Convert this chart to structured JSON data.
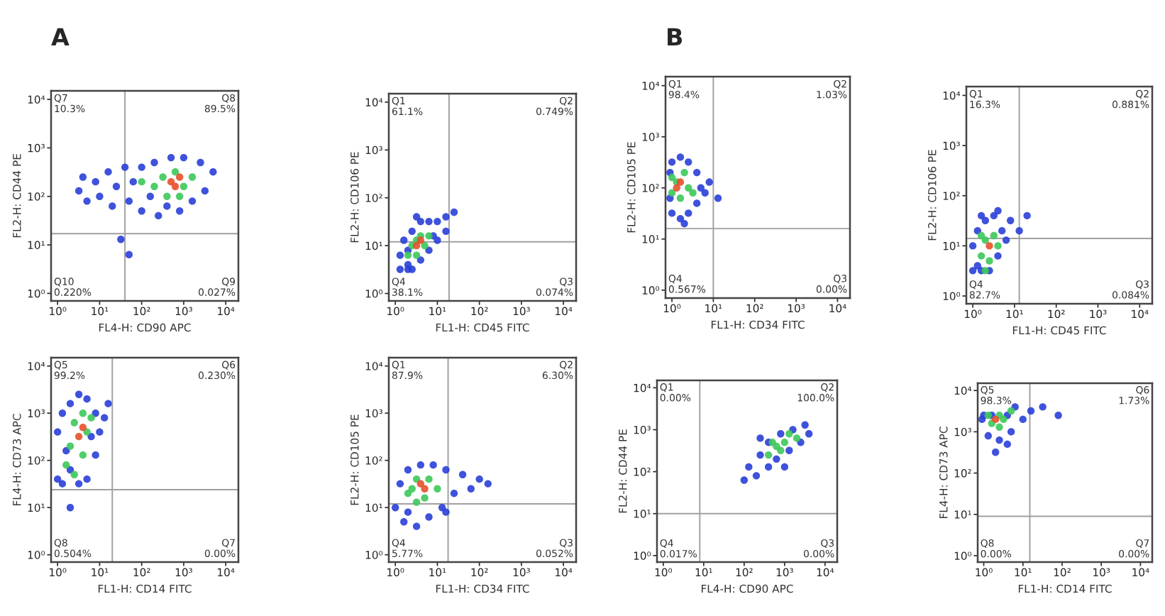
{
  "chart_data": [
    {
      "type": "scatter",
      "title": "A",
      "xlabel": "FL4-H: CD90 APC",
      "ylabel": "FL2-H: CD44 PE",
      "log": "xy",
      "marker": "circle",
      "xlim": [
        0.7,
        20000
      ],
      "ylim": [
        0.7,
        15000
      ],
      "xticks": [
        {
          "value": 1,
          "label": "10⁰"
        },
        {
          "value": 10,
          "label": "10¹"
        },
        {
          "value": 100,
          "label": "10²"
        },
        {
          "value": 1000,
          "label": "10³"
        },
        {
          "value": 10000,
          "label": "10⁴"
        }
      ],
      "yticks": [
        {
          "value": 1,
          "label": "10⁰"
        },
        {
          "value": 10,
          "label": "10¹"
        },
        {
          "value": 100,
          "label": "10²"
        },
        {
          "value": 1000,
          "label": "10³"
        },
        {
          "value": 10000,
          "label": "10⁴"
        }
      ],
      "ref_lines": [
        {
          "axis": "x",
          "value": 40,
          "color": "#a0a0a0"
        },
        {
          "axis": "y",
          "value": 17,
          "color": "#a0a0a0"
        }
      ],
      "series": [
        {
          "color": "#2a3fd8",
          "x": [
            3.2,
            4,
            5,
            8,
            10,
            16,
            20,
            25,
            40,
            50,
            63,
            100,
            100,
            160,
            200,
            250,
            400,
            500,
            800,
            1000,
            1600,
            2500,
            3200,
            5000,
            50,
            32
          ],
          "values": [
            130,
            250,
            80,
            200,
            100,
            320,
            63,
            160,
            400,
            80,
            200,
            50,
            400,
            100,
            500,
            40,
            63,
            630,
            50,
            630,
            80,
            500,
            130,
            320,
            6.3,
            13
          ]
        },
        {
          "color": "#3cc85a",
          "x": [
            200,
            320,
            400,
            630,
            1000,
            1600,
            800,
            100
          ],
          "values": [
            160,
            250,
            100,
            320,
            160,
            250,
            100,
            200
          ]
        },
        {
          "color": "#e8502a",
          "x": [
            500,
            800,
            630
          ],
          "values": [
            200,
            250,
            160
          ]
        }
      ],
      "annotations": [
        "Q7\n10.3%",
        "Q8\n89.5%",
        "Q10\n0.220%",
        "Q9\n0.027%"
      ]
    },
    {
      "type": "scatter",
      "xlabel": "FL1-H: CD45 FITC",
      "ylabel": "FL2-H: CD106 PE",
      "log": "xy",
      "marker": "circle",
      "xlim": [
        0.7,
        20000
      ],
      "ylim": [
        0.7,
        15000
      ],
      "xticks": [
        {
          "value": 1,
          "label": "10⁰"
        },
        {
          "value": 10,
          "label": "10¹"
        },
        {
          "value": 100,
          "label": "10²"
        },
        {
          "value": 1000,
          "label": "10³"
        },
        {
          "value": 10000,
          "label": "10⁴"
        }
      ],
      "yticks": [
        {
          "value": 1,
          "label": "10⁰"
        },
        {
          "value": 10,
          "label": "10¹"
        },
        {
          "value": 100,
          "label": "10²"
        },
        {
          "value": 1000,
          "label": "10³"
        },
        {
          "value": 10000,
          "label": "10⁴"
        }
      ],
      "ref_lines": [
        {
          "axis": "x",
          "value": 19,
          "color": "#a0a0a0"
        },
        {
          "axis": "y",
          "value": 12,
          "color": "#a0a0a0"
        }
      ],
      "series": [
        {
          "color": "#2a3fd8",
          "x": [
            1.3,
            2,
            1.3,
            2,
            1.6,
            2.5,
            2.5,
            4,
            4,
            6.3,
            6.3,
            10,
            10,
            16,
            16,
            3.2,
            8,
            2,
            25
          ],
          "values": [
            3.2,
            3.2,
            6.3,
            4,
            13,
            3.2,
            20,
            5,
            32,
            8,
            32,
            13,
            32,
            20,
            40,
            40,
            16,
            8,
            50
          ]
        },
        {
          "color": "#3cc85a",
          "x": [
            2,
            2.5,
            3.2,
            4,
            5,
            6.3,
            3.2
          ],
          "values": [
            6.3,
            10,
            6.3,
            16,
            10,
            16,
            13
          ]
        },
        {
          "color": "#e8502a",
          "x": [
            4,
            3.2
          ],
          "values": [
            13,
            10
          ]
        }
      ],
      "annotations": [
        "Q1\n61.1%",
        "Q2\n0.749%",
        "Q4\n38.1%",
        "Q3\n0.074%"
      ]
    },
    {
      "type": "scatter",
      "title": "B",
      "xlabel": "FL1-H: CD34 FITC",
      "ylabel": "FL2-H: CD105 PE",
      "log": "xy",
      "marker": "circle",
      "xlim": [
        0.7,
        20000
      ],
      "ylim": [
        0.7,
        15000
      ],
      "xticks": [
        {
          "value": 1,
          "label": "10⁰"
        },
        {
          "value": 10,
          "label": "10¹"
        },
        {
          "value": 100,
          "label": "10²"
        },
        {
          "value": 1000,
          "label": "10³"
        },
        {
          "value": 10000,
          "label": "10⁴"
        }
      ],
      "yticks": [
        {
          "value": 1,
          "label": "10⁰"
        },
        {
          "value": 10,
          "label": "10¹"
        },
        {
          "value": 100,
          "label": "10²"
        },
        {
          "value": 1000,
          "label": "10³"
        },
        {
          "value": 10000,
          "label": "10⁴"
        }
      ],
      "ref_lines": [
        {
          "axis": "x",
          "value": 10,
          "color": "#a0a0a0"
        },
        {
          "axis": "y",
          "value": 16,
          "color": "#a0a0a0"
        }
      ],
      "series": [
        {
          "color": "#2a3fd8",
          "x": [
            0.9,
            0.9,
            1,
            1,
            1.6,
            1.6,
            2.5,
            2.5,
            4,
            4,
            6.3,
            8,
            13,
            5,
            2
          ],
          "values": [
            63,
            200,
            32,
            320,
            25,
            400,
            32,
            320,
            50,
            200,
            80,
            130,
            63,
            100,
            20
          ]
        },
        {
          "color": "#3cc85a",
          "x": [
            1,
            1,
            1.6,
            2,
            2.5,
            1.3,
            3.2
          ],
          "values": [
            80,
            160,
            63,
            200,
            100,
            130,
            80
          ]
        },
        {
          "color": "#e8502a",
          "x": [
            1.6,
            1.3
          ],
          "values": [
            130,
            100
          ]
        }
      ],
      "annotations": [
        "Q1\n98.4%",
        "Q2\n1.03%",
        "Q4\n0.567%",
        "Q3\n0.00%"
      ]
    },
    {
      "type": "scatter",
      "xlabel": "FL1-H: CD45 FITC",
      "ylabel": "FL2-H: CD106 PE",
      "log": "xy",
      "marker": "circle",
      "xlim": [
        0.7,
        20000
      ],
      "ylim": [
        0.7,
        15000
      ],
      "xticks": [
        {
          "value": 1,
          "label": "10⁰"
        },
        {
          "value": 10,
          "label": "10¹"
        },
        {
          "value": 100,
          "label": "10²"
        },
        {
          "value": 1000,
          "label": "10³"
        },
        {
          "value": 10000,
          "label": "10⁴"
        }
      ],
      "yticks": [
        {
          "value": 1,
          "label": "10⁰"
        },
        {
          "value": 10,
          "label": "10¹"
        },
        {
          "value": 100,
          "label": "10²"
        },
        {
          "value": 1000,
          "label": "10³"
        },
        {
          "value": 10000,
          "label": "10⁴"
        }
      ],
      "ref_lines": [
        {
          "axis": "x",
          "value": 13,
          "color": "#a0a0a0"
        },
        {
          "axis": "y",
          "value": 14,
          "color": "#a0a0a0"
        }
      ],
      "series": [
        {
          "color": "#2a3fd8",
          "x": [
            1,
            1.3,
            1,
            1.6,
            1.3,
            2,
            2.5,
            3.2,
            4,
            5,
            6.3,
            8,
            13,
            20,
            1.6,
            4
          ],
          "values": [
            3.2,
            4,
            10,
            3.2,
            20,
            32,
            3.2,
            40,
            6.3,
            20,
            13,
            32,
            20,
            40,
            40,
            50
          ]
        },
        {
          "color": "#3cc85a",
          "x": [
            1.6,
            2,
            2.5,
            3.2,
            2,
            4,
            1.6
          ],
          "values": [
            6.3,
            13,
            5,
            16,
            3.2,
            10,
            16
          ]
        },
        {
          "color": "#e8502a",
          "x": [
            2.5
          ],
          "values": [
            10
          ]
        }
      ],
      "annotations": [
        "Q1\n16.3%",
        "Q2\n0.881%",
        "Q4\n82.7%",
        "Q3\n0.084%"
      ]
    },
    {
      "type": "scatter",
      "xlabel": "FL1-H: CD14 FITC",
      "ylabel": "FL4-H: CD73 APC",
      "log": "xy",
      "marker": "circle",
      "xlim": [
        0.7,
        20000
      ],
      "ylim": [
        0.7,
        15000
      ],
      "xticks": [
        {
          "value": 1,
          "label": "10⁰"
        },
        {
          "value": 10,
          "label": "10¹"
        },
        {
          "value": 100,
          "label": "10²"
        },
        {
          "value": 1000,
          "label": "10³"
        },
        {
          "value": 10000,
          "label": "10⁴"
        }
      ],
      "yticks": [
        {
          "value": 1,
          "label": "10⁰"
        },
        {
          "value": 10,
          "label": "10¹"
        },
        {
          "value": 100,
          "label": "10²"
        },
        {
          "value": 1000,
          "label": "10³"
        },
        {
          "value": 10000,
          "label": "10⁴"
        }
      ],
      "ref_lines": [
        {
          "axis": "x",
          "value": 20,
          "color": "#a0a0a0"
        },
        {
          "axis": "y",
          "value": 24,
          "color": "#a0a0a0"
        }
      ],
      "series": [
        {
          "color": "#2a3fd8",
          "x": [
            1,
            1.3,
            1.6,
            1,
            1.3,
            2,
            3.2,
            5,
            8,
            10,
            13,
            8,
            5,
            3.2,
            2,
            2,
            6.3,
            16
          ],
          "values": [
            40,
            32,
            160,
            400,
            1000,
            1600,
            2500,
            2000,
            1000,
            400,
            800,
            130,
            40,
            32,
            10,
            63,
            320,
            1600
          ]
        },
        {
          "color": "#3cc85a",
          "x": [
            1.6,
            2,
            2.5,
            4,
            5,
            4,
            2.5,
            6.3
          ],
          "values": [
            80,
            200,
            630,
            1000,
            400,
            130,
            50,
            800
          ]
        },
        {
          "color": "#e8502a",
          "x": [
            3.2,
            4
          ],
          "values": [
            320,
            500
          ]
        }
      ],
      "annotations": [
        "Q5\n99.2%",
        "Q6\n0.230%",
        "Q8\n0.504%",
        "Q7\n0.00%"
      ]
    },
    {
      "type": "scatter",
      "xlabel": "FL1-H: CD34 FITC",
      "ylabel": "FL2-H: CD105 PE",
      "log": "xy",
      "marker": "circle",
      "xlim": [
        0.7,
        20000
      ],
      "ylim": [
        0.7,
        15000
      ],
      "xticks": [
        {
          "value": 1,
          "label": "10⁰"
        },
        {
          "value": 10,
          "label": "10¹"
        },
        {
          "value": 100,
          "label": "10²"
        },
        {
          "value": 1000,
          "label": "10³"
        },
        {
          "value": 10000,
          "label": "10⁴"
        }
      ],
      "yticks": [
        {
          "value": 1,
          "label": "10⁰"
        },
        {
          "value": 10,
          "label": "10¹"
        },
        {
          "value": 100,
          "label": "10²"
        },
        {
          "value": 1000,
          "label": "10³"
        },
        {
          "value": 10000,
          "label": "10⁴"
        }
      ],
      "ref_lines": [
        {
          "axis": "x",
          "value": 18,
          "color": "#a0a0a0"
        },
        {
          "axis": "y",
          "value": 12,
          "color": "#a0a0a0"
        }
      ],
      "series": [
        {
          "color": "#2a3fd8",
          "x": [
            1,
            1.3,
            1.6,
            2,
            3.2,
            4,
            6.3,
            8,
            13,
            16,
            25,
            40,
            63,
            100,
            160,
            16,
            2
          ],
          "values": [
            10,
            32,
            5,
            63,
            4,
            80,
            6.3,
            80,
            10,
            63,
            20,
            50,
            25,
            40,
            32,
            8,
            8
          ]
        },
        {
          "color": "#3cc85a",
          "x": [
            2,
            3.2,
            3.2,
            5,
            6.3,
            10,
            2.5
          ],
          "values": [
            20,
            13,
            40,
            16,
            40,
            25,
            25
          ]
        },
        {
          "color": "#e8502a",
          "x": [
            5,
            4
          ],
          "values": [
            25,
            32
          ]
        }
      ],
      "annotations": [
        "Q1\n87.9%",
        "Q2\n6.30%",
        "Q4\n5.77%",
        "Q3\n0.052%"
      ]
    },
    {
      "type": "scatter",
      "xlabel": "FL4-H: CD90 APC",
      "ylabel": "FL2-H: CD44 PE",
      "log": "xy",
      "marker": "circle",
      "xlim": [
        0.7,
        20000
      ],
      "ylim": [
        0.7,
        15000
      ],
      "xticks": [
        {
          "value": 1,
          "label": "10⁰"
        },
        {
          "value": 10,
          "label": "10¹"
        },
        {
          "value": 100,
          "label": "10²"
        },
        {
          "value": 1000,
          "label": "10³"
        },
        {
          "value": 10000,
          "label": "10⁴"
        }
      ],
      "yticks": [
        {
          "value": 1,
          "label": "10⁰"
        },
        {
          "value": 10,
          "label": "10¹"
        },
        {
          "value": 100,
          "label": "10²"
        },
        {
          "value": 1000,
          "label": "10³"
        },
        {
          "value": 10000,
          "label": "10⁴"
        }
      ],
      "ref_lines": [
        {
          "axis": "x",
          "value": 8,
          "color": "#a0a0a0"
        },
        {
          "axis": "y",
          "value": 10,
          "color": "#a0a0a0"
        }
      ],
      "series": [
        {
          "color": "#2a3fd8",
          "x": [
            100,
            130,
            200,
            250,
            400,
            400,
            630,
            800,
            1300,
            1600,
            2500,
            3200,
            4000,
            1000,
            250
          ],
          "values": [
            63,
            130,
            80,
            250,
            130,
            500,
            200,
            800,
            320,
            1000,
            500,
            1300,
            800,
            130,
            630
          ]
        },
        {
          "color": "#3cc85a",
          "x": [
            400,
            630,
            1000,
            1300,
            2000,
            800,
            500
          ],
          "values": [
            250,
            400,
            500,
            800,
            630,
            320,
            500
          ]
        }
      ],
      "annotations": [
        "Q1\n0.00%",
        "Q2\n100.0%",
        "Q4\n0.017%",
        "Q3\n0.00%"
      ]
    },
    {
      "type": "scatter",
      "xlabel": "FL1-H: CD14 FITC",
      "ylabel": "FL4-H: CD73 APC",
      "log": "xy",
      "marker": "circle",
      "xlim": [
        0.7,
        20000
      ],
      "ylim": [
        0.7,
        15000
      ],
      "xticks": [
        {
          "value": 1,
          "label": "10⁰"
        },
        {
          "value": 10,
          "label": "10¹"
        },
        {
          "value": 100,
          "label": "10²"
        },
        {
          "value": 1000,
          "label": "10³"
        },
        {
          "value": 10000,
          "label": "10⁴"
        }
      ],
      "yticks": [
        {
          "value": 1,
          "label": "10⁰"
        },
        {
          "value": 10,
          "label": "10¹"
        },
        {
          "value": 100,
          "label": "10²"
        },
        {
          "value": 1000,
          "label": "10³"
        },
        {
          "value": 10000,
          "label": "10⁴"
        }
      ],
      "ref_lines": [
        {
          "axis": "x",
          "value": 15,
          "color": "#a0a0a0"
        },
        {
          "axis": "y",
          "value": 9,
          "color": "#a0a0a0"
        }
      ],
      "series": [
        {
          "color": "#2a3fd8",
          "x": [
            0.9,
            1,
            1.3,
            1.6,
            2.5,
            4,
            5,
            6.3,
            10,
            16,
            32,
            80,
            2,
            4
          ],
          "values": [
            2000,
            2500,
            800,
            2500,
            630,
            2500,
            1000,
            4000,
            2000,
            3200,
            4000,
            2500,
            320,
            500
          ]
        },
        {
          "color": "#3cc85a",
          "x": [
            1.3,
            1.6,
            2.5,
            3.2,
            5,
            2.5
          ],
          "values": [
            2500,
            1600,
            2500,
            2000,
            3200,
            1300
          ]
        },
        {
          "color": "#e8502a",
          "x": [
            2
          ],
          "values": [
            2000
          ]
        }
      ],
      "annotations": [
        "Q5\n98.3%",
        "Q6\n1.73%",
        "Q8\n0.00%",
        "Q7\n0.00%"
      ]
    }
  ]
}
